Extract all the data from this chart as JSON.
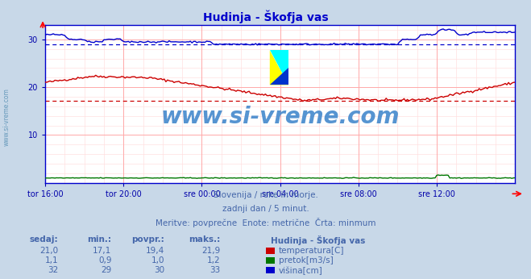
{
  "title": "Hudinja - Škofja vas",
  "title_color": "#0000cc",
  "bg_color": "#c8d8e8",
  "plot_bg_color": "#ffffff",
  "grid_color_major": "#ffaaaa",
  "grid_color_minor": "#ffe0e0",
  "xlabel_color": "#0000aa",
  "ylabel_color": "#0000aa",
  "watermark_text": "www.si-vreme.com",
  "watermark_color": "#4488cc",
  "subtitle_color": "#4466aa",
  "xticklabels": [
    "tor 16:00",
    "tor 20:00",
    "sre 00:00",
    "sre 04:00",
    "sre 08:00",
    "sre 12:00"
  ],
  "yticks": [
    10,
    20,
    30
  ],
  "ylim": [
    0,
    33
  ],
  "xlim": [
    0,
    288
  ],
  "n_points": 289,
  "temp_color": "#cc0000",
  "flow_color": "#007700",
  "height_color": "#0000cc",
  "temp_min_line": 17.1,
  "height_min_line": 29.0,
  "subtitle_lines": [
    "Slovenija / reke in morje.",
    "zadnji dan / 5 minut.",
    "Meritve: povprečne  Enote: metrične  Črta: minmum"
  ],
  "table_headers": [
    "sedaj:",
    "min.:",
    "povpr.:",
    "maks.:"
  ],
  "table_data": [
    [
      "21,0",
      "17,1",
      "19,4",
      "21,9"
    ],
    [
      "1,1",
      "0,9",
      "1,0",
      "1,2"
    ],
    [
      "32",
      "29",
      "30",
      "33"
    ]
  ],
  "legend_title": "Hudinja - Škofja vas",
  "legend_items": [
    {
      "label": "temperatura[C]",
      "color": "#cc0000"
    },
    {
      "label": "pretok[m3/s]",
      "color": "#007700"
    },
    {
      "label": "višina[cm]",
      "color": "#0000cc"
    }
  ],
  "axis_color": "#0000cc",
  "left_watermark": "www.si-vreme.com"
}
